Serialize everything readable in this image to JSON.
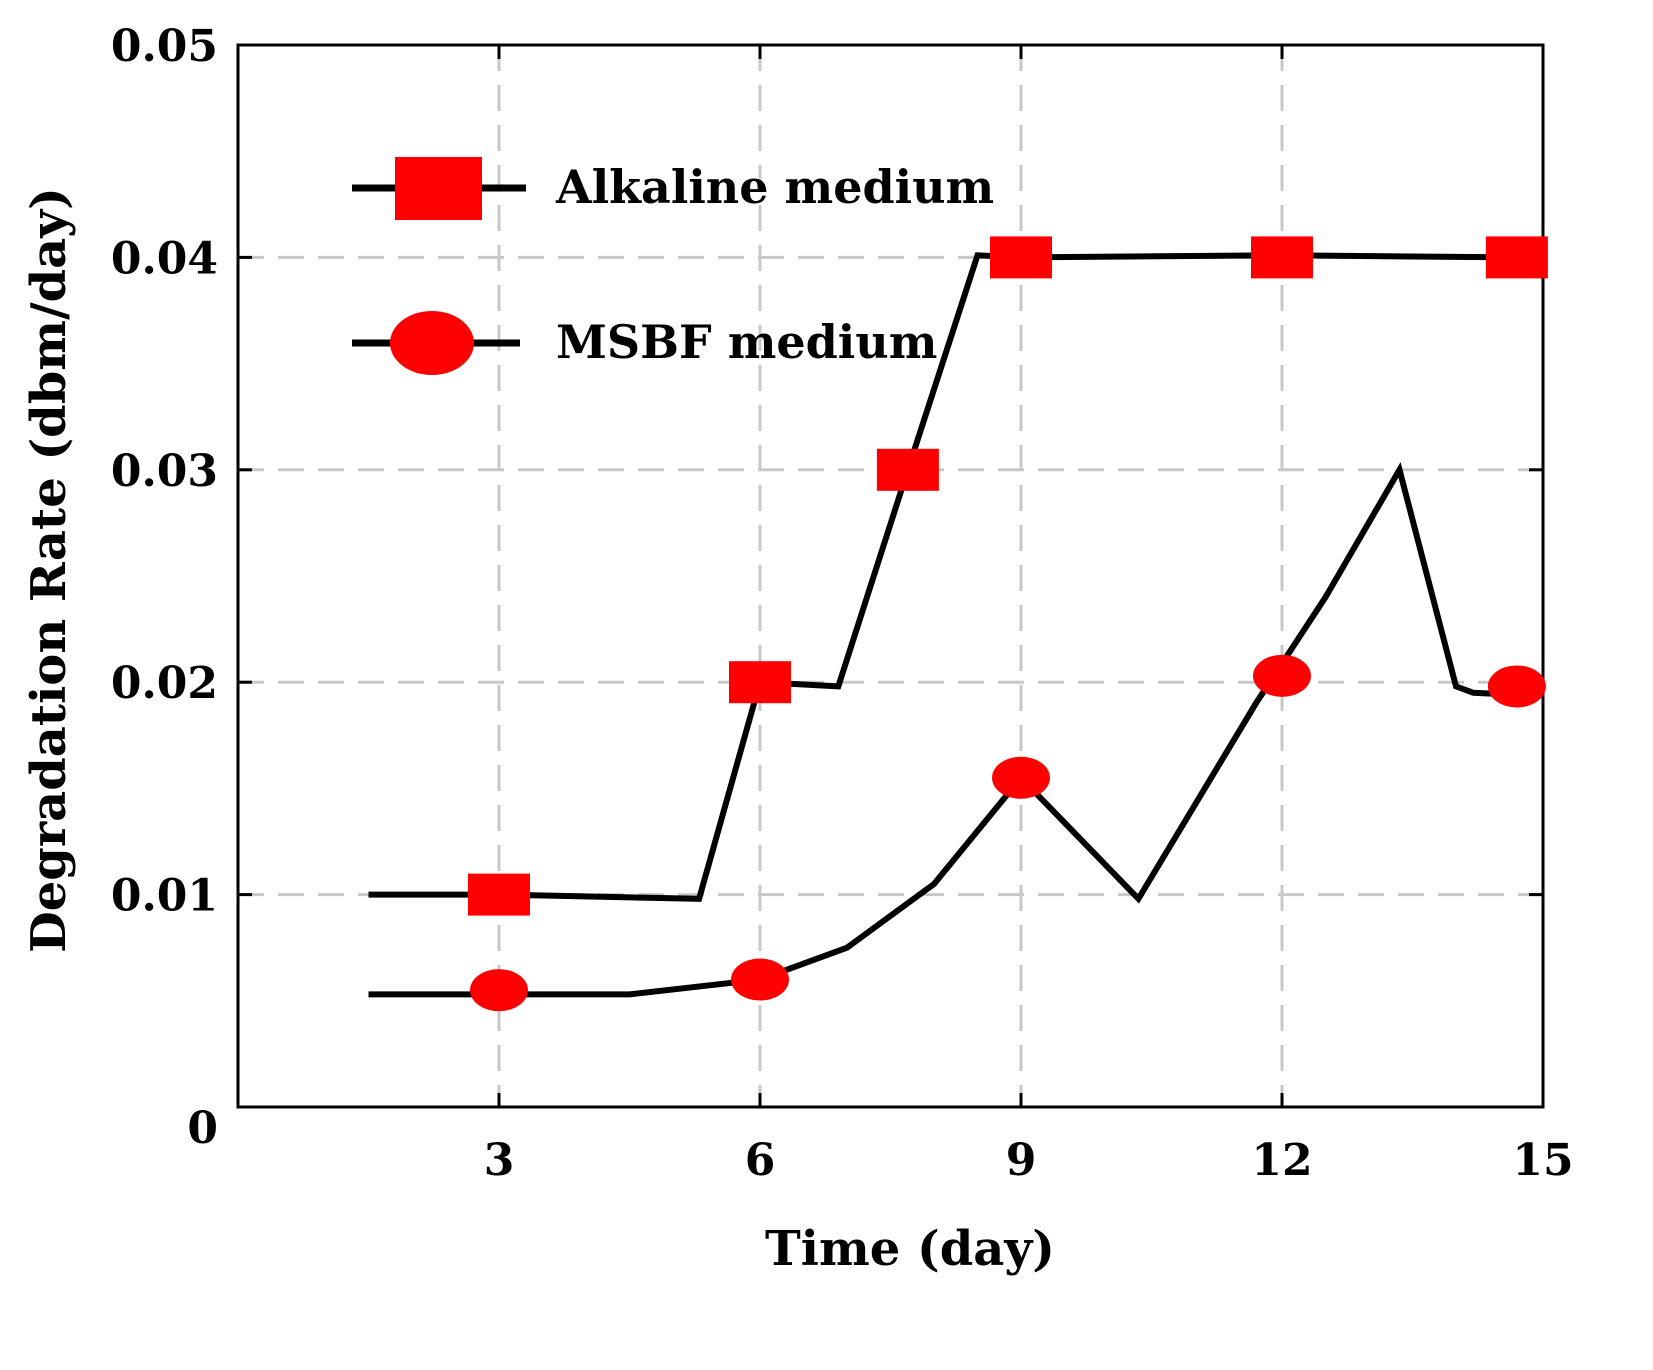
{
  "chart_data": {
    "type": "line",
    "title": "",
    "xlabel": "Time (day)",
    "ylabel": "Degradation Rate (dbm/day)",
    "xlim": [
      0,
      15
    ],
    "ylim": [
      0,
      0.05
    ],
    "xticks": [
      3,
      6,
      9,
      12,
      15
    ],
    "xtick_labels": [
      "3",
      "6",
      "9",
      "12",
      "15"
    ],
    "yticks": [
      0,
      0.01,
      0.02,
      0.03,
      0.04,
      0.05
    ],
    "ytick_labels": [
      "0",
      "0.01",
      "0.02",
      "0.03",
      "0.04",
      "0.05"
    ],
    "grid": true,
    "legend_position": "top-left",
    "marker_color": "#ff0000",
    "line_color": "#000000",
    "series": [
      {
        "name": "Alkaline medium",
        "marker": "square",
        "markers": [
          {
            "x": 3,
            "y": 0.01
          },
          {
            "x": 6,
            "y": 0.02
          },
          {
            "x": 7.7,
            "y": 0.03
          },
          {
            "x": 9,
            "y": 0.04
          },
          {
            "x": 12,
            "y": 0.04
          },
          {
            "x": 14.7,
            "y": 0.04
          }
        ],
        "line": [
          {
            "x": 1.5,
            "y": 0.01
          },
          {
            "x": 3,
            "y": 0.01
          },
          {
            "x": 5.3,
            "y": 0.0098
          },
          {
            "x": 6,
            "y": 0.02
          },
          {
            "x": 6.9,
            "y": 0.0198
          },
          {
            "x": 7.7,
            "y": 0.03
          },
          {
            "x": 8.5,
            "y": 0.0401
          },
          {
            "x": 9,
            "y": 0.04
          },
          {
            "x": 12,
            "y": 0.0401
          },
          {
            "x": 14.7,
            "y": 0.04
          }
        ]
      },
      {
        "name": "MSBF medium",
        "marker": "circle",
        "markers": [
          {
            "x": 3,
            "y": 0.0055
          },
          {
            "x": 6,
            "y": 0.006
          },
          {
            "x": 9,
            "y": 0.0155
          },
          {
            "x": 12,
            "y": 0.0203
          },
          {
            "x": 14.7,
            "y": 0.0198
          }
        ],
        "line": [
          {
            "x": 1.5,
            "y": 0.0053
          },
          {
            "x": 3,
            "y": 0.0053
          },
          {
            "x": 4.5,
            "y": 0.0053
          },
          {
            "x": 6,
            "y": 0.006
          },
          {
            "x": 7,
            "y": 0.0075
          },
          {
            "x": 8,
            "y": 0.0105
          },
          {
            "x": 9,
            "y": 0.0155
          },
          {
            "x": 10.35,
            "y": 0.0098
          },
          {
            "x": 11.7,
            "y": 0.019
          },
          {
            "x": 12.5,
            "y": 0.024
          },
          {
            "x": 13.35,
            "y": 0.03
          },
          {
            "x": 14,
            "y": 0.0198
          },
          {
            "x": 14.2,
            "y": 0.0195
          },
          {
            "x": 14.7,
            "y": 0.0194
          }
        ]
      }
    ]
  }
}
